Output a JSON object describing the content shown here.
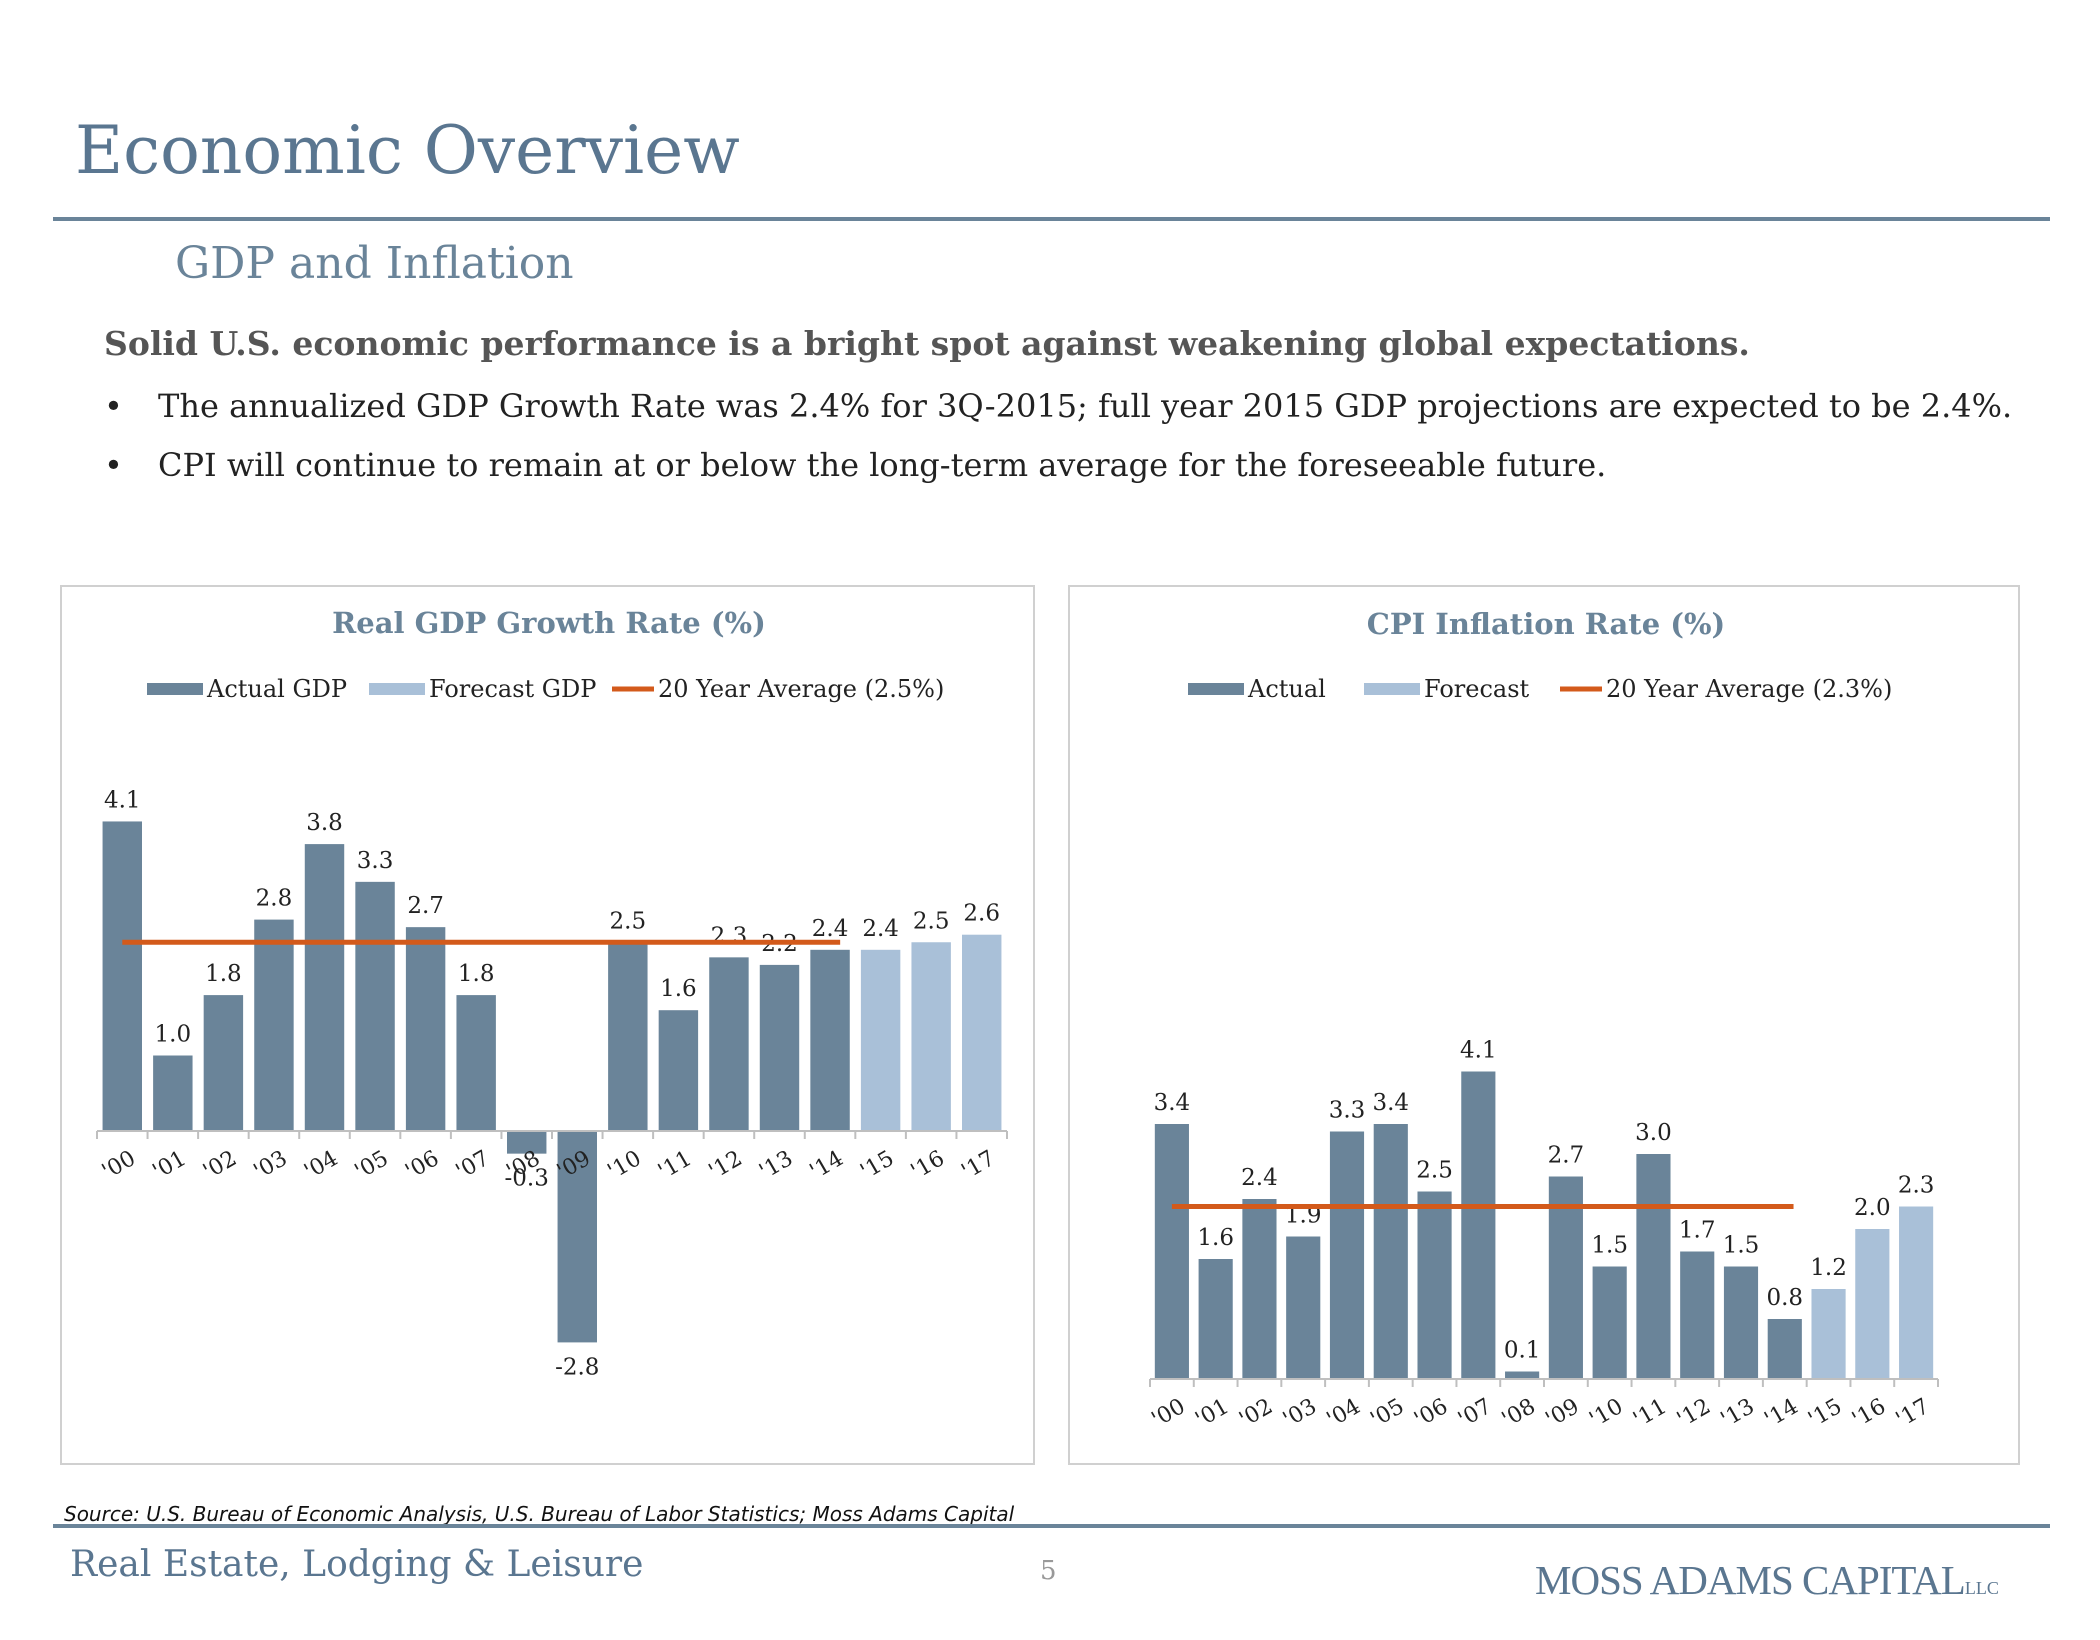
{
  "header": {
    "title": "Economic Overview",
    "subtitle": "GDP and Inflation"
  },
  "body": {
    "lead": "Solid U.S. economic performance is a bright spot against weakening global expectations.",
    "bullets": [
      "The annualized GDP Growth Rate was 2.4% for 3Q-2015; full year 2015 GDP projections are expected to be 2.4%.",
      "CPI will continue to remain at or below the long-term average for the foreseeable future."
    ],
    "bullet_symbol": "•"
  },
  "colors": {
    "actual": "#6a8499",
    "forecast": "#a9c0d8",
    "average": "#d35a1b",
    "title": "#6a8499"
  },
  "chart_data": [
    {
      "type": "bar",
      "title": "Real GDP Growth Rate (%)",
      "categories": [
        "'00",
        "'01",
        "'02",
        "'03",
        "'04",
        "'05",
        "'06",
        "'07",
        "'08",
        "'09",
        "'10",
        "'11",
        "'12",
        "'13",
        "'14",
        "'15",
        "'16",
        "'17"
      ],
      "series": [
        {
          "name": "Actual GDP",
          "kind": "bar",
          "values": [
            4.1,
            1.0,
            1.8,
            2.8,
            3.8,
            3.3,
            2.7,
            1.8,
            -0.3,
            -2.8,
            2.5,
            1.6,
            2.3,
            2.2,
            2.4,
            null,
            null,
            null
          ]
        },
        {
          "name": "Forecast GDP",
          "kind": "bar",
          "values": [
            null,
            null,
            null,
            null,
            null,
            null,
            null,
            null,
            null,
            null,
            null,
            null,
            null,
            null,
            null,
            2.4,
            2.5,
            2.6
          ]
        },
        {
          "name": "20 Year Average (2.5%)",
          "kind": "line",
          "value": 2.5,
          "span": [
            "'00",
            "'14"
          ]
        }
      ],
      "data_labels": [
        "4.1",
        "1.0",
        "1.8",
        "2.8",
        "3.8",
        "3.3",
        "2.7",
        "1.8",
        "-0.3",
        "-2.8",
        "2.5",
        "1.6",
        "2.3",
        "2.2",
        "2.4",
        "2.4",
        "2.5",
        "2.6"
      ],
      "ylim": [
        -2.8,
        4.1
      ],
      "legend": "top",
      "grid": false,
      "xlabel": "",
      "ylabel": ""
    },
    {
      "type": "bar",
      "title": "CPI Inflation Rate (%)",
      "categories": [
        "'00",
        "'01",
        "'02",
        "'03",
        "'04",
        "'05",
        "'06",
        "'07",
        "'08",
        "'09",
        "'10",
        "'11",
        "'12",
        "'13",
        "'14",
        "'15",
        "'16",
        "'17"
      ],
      "series": [
        {
          "name": "Actual",
          "kind": "bar",
          "values": [
            3.4,
            1.6,
            2.4,
            1.9,
            3.3,
            3.4,
            2.5,
            4.1,
            0.1,
            2.7,
            1.5,
            3.0,
            1.7,
            1.5,
            0.8,
            null,
            null,
            null
          ]
        },
        {
          "name": "Forecast",
          "kind": "bar",
          "values": [
            null,
            null,
            null,
            null,
            null,
            null,
            null,
            null,
            null,
            null,
            null,
            null,
            null,
            null,
            null,
            1.2,
            2.0,
            2.3
          ]
        },
        {
          "name": "20 Year Average (2.3%)",
          "kind": "line",
          "value": 2.3,
          "span": [
            "'00",
            "'14"
          ]
        }
      ],
      "data_labels": [
        "3.4",
        "1.6",
        "2.4",
        "1.9",
        "3.3",
        "3.4",
        "2.5",
        "4.1",
        "0.1",
        "2.7",
        "1.5",
        "3.0",
        "1.7",
        "1.5",
        "0.8",
        "1.2",
        "2.0",
        "2.3"
      ],
      "ylim": [
        0,
        4.1
      ],
      "legend": "top",
      "grid": false,
      "xlabel": "",
      "ylabel": ""
    }
  ],
  "footer": {
    "source": "Source:  U.S. Bureau of Economic Analysis, U.S. Bureau of Labor Statistics; Moss Adams Capital",
    "section": "Real Estate, Lodging & Leisure",
    "page": "5",
    "logo_text": "MOSS ADAMS CAPITAL",
    "logo_suffix": "LLC"
  }
}
